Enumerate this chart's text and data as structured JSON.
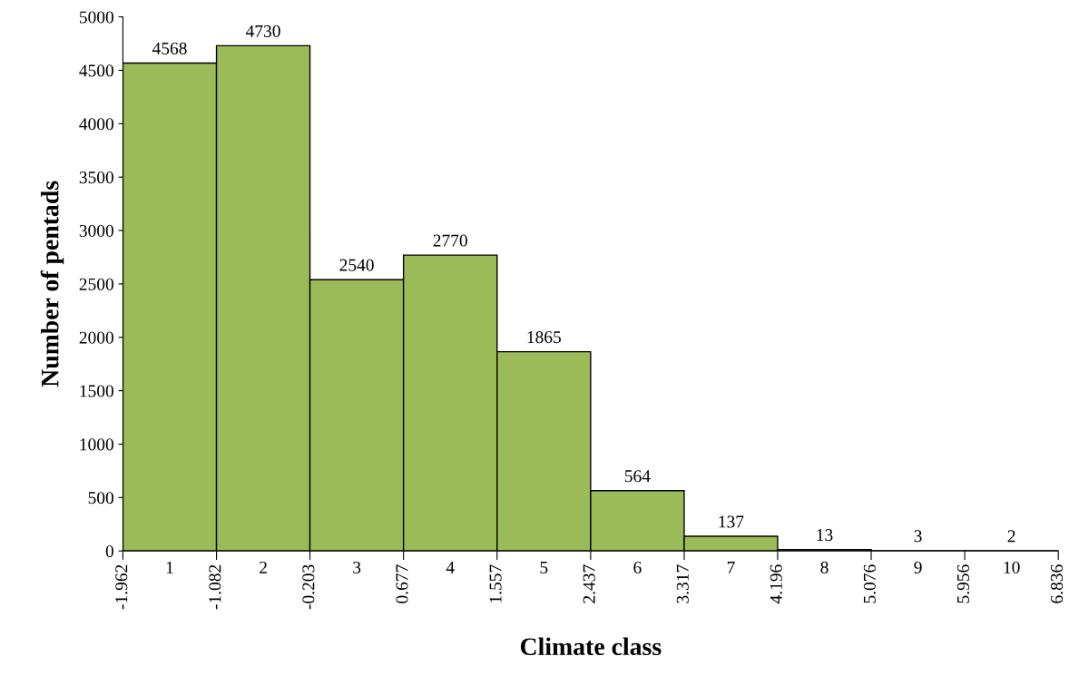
{
  "chart_data": {
    "type": "histogram",
    "xlabel": "Climate class",
    "ylabel": "Number of pentads",
    "bins": [
      -1.962,
      -1.082,
      -0.203,
      0.677,
      1.557,
      2.437,
      3.317,
      4.196,
      5.076,
      5.956,
      6.836
    ],
    "values": [
      4568,
      4730,
      2540,
      2770,
      1865,
      564,
      137,
      13,
      3,
      2
    ],
    "color": "#9bbb59",
    "data_labels": true,
    "xlim": [
      -1.962,
      6.836
    ],
    "xticks": [
      -1.962,
      -1.082,
      -0.203,
      0.677,
      1.557,
      2.437,
      3.317,
      4.196,
      5.076,
      5.956,
      6.836
    ],
    "x2lim": [
      0.5,
      10.5
    ],
    "x2ticks": [
      1,
      2,
      3,
      4,
      5,
      6,
      7,
      8,
      9,
      10
    ],
    "ylim": [
      0,
      5000
    ],
    "yticks": [
      0,
      500,
      1000,
      1500,
      2000,
      2500,
      3000,
      3500,
      4000,
      4500,
      5000
    ],
    "grid": false,
    "legend": false
  }
}
